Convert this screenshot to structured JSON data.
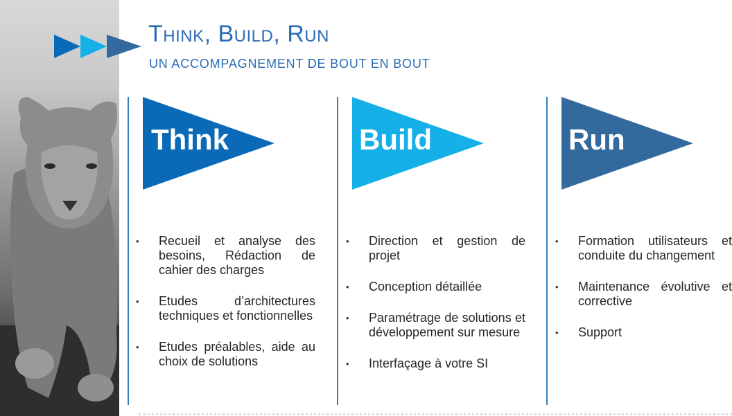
{
  "header": {
    "title": "Think, Build, Run",
    "subtitle": "UN ACCOMPAGNEMENT DE BOUT EN BOUT"
  },
  "colors": {
    "think": "#0a6ab8",
    "build": "#15b0e8",
    "run": "#336a9e",
    "title": "#2b6cb5"
  },
  "columns": [
    {
      "label": "Think",
      "items": [
        "Recueil et analyse des besoins, Rédaction de cahier des charges",
        "Etudes d’architectures techniques et fonctionnelles",
        "Etudes préalables, aide au choix de solutions"
      ]
    },
    {
      "label": "Build",
      "items": [
        "Direction et gestion de projet",
        "Conception détaillée",
        "Paramétrage de solutions et développement sur mesure",
        "Interfaçage à votre SI"
      ]
    },
    {
      "label": "Run",
      "items": [
        "Formation utilisateurs et conduite du changement",
        "Maintenance évolutive et corrective",
        "Support"
      ]
    }
  ],
  "bullet": "•"
}
